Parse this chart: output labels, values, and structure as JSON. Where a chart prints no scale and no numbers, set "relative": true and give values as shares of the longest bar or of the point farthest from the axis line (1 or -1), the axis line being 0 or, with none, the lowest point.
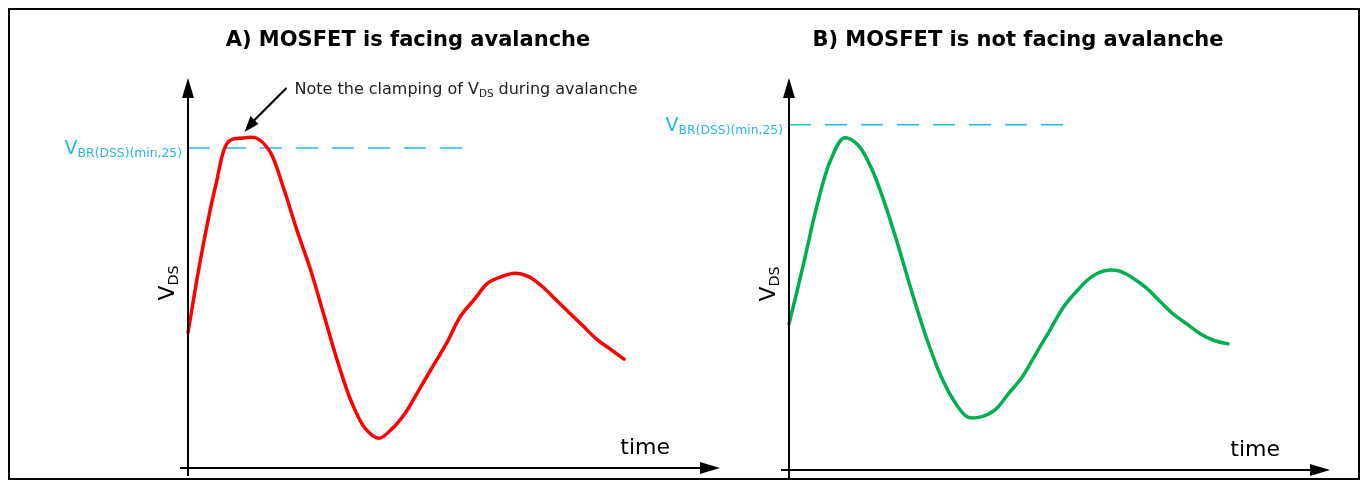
{
  "chart_data": [
    {
      "type": "line",
      "title": "A) MOSFET is facing avalanche",
      "xlabel": "time",
      "ylabel": "V$_{DS}$",
      "relative": true,
      "marker": "none",
      "line_style": "solid",
      "categories": [
        null,
        null,
        null,
        null,
        null,
        null,
        null,
        null,
        null,
        null,
        null,
        null,
        null,
        null,
        null,
        null,
        null,
        null,
        null,
        null,
        null,
        null,
        null,
        null,
        null,
        null,
        null,
        null,
        null,
        null,
        null,
        null,
        null
      ],
      "series": [
        {
          "color": "#ff0000",
          "values": [
            0.41,
            0.65,
            0.85,
            0.99,
            1,
            1,
            0.96,
            0.85,
            0.72,
            0.6,
            0.46,
            0.32,
            0.2,
            0.12,
            0.09,
            0.12,
            0.17,
            0.24,
            0.31,
            0.38,
            0.46,
            0.51,
            0.56,
            0.58,
            0.59,
            0.58,
            0.55,
            0.51,
            0.47,
            0.43,
            0.39,
            0.36,
            0.33
          ]
        }
      ],
      "ref_lines": [
        {
          "axis": "y",
          "value": 0.97,
          "label": "V$_{BR(DSS)(min,25)}$",
          "color": "#29b6e8",
          "line_style": "dashed"
        }
      ],
      "annotations": [
        "Note the clamping of V$_{DS}$ during avalanche"
      ]
    },
    {
      "type": "line",
      "title": "B) MOSFET is not facing avalanche",
      "xlabel": "time",
      "ylabel": "V$_{DS}$",
      "relative": true,
      "marker": "none",
      "line_style": "solid",
      "categories": [
        null,
        null,
        null,
        null,
        null,
        null,
        null,
        null,
        null,
        null,
        null,
        null,
        null,
        null,
        null,
        null,
        null,
        null,
        null,
        null,
        null,
        null,
        null,
        null,
        null,
        null,
        null,
        null,
        null,
        null,
        null,
        null,
        null
      ],
      "series": [
        {
          "color": "#00b050",
          "values": [
            0.44,
            0.61,
            0.79,
            0.93,
            1,
            0.98,
            0.91,
            0.8,
            0.67,
            0.53,
            0.4,
            0.29,
            0.21,
            0.16,
            0.16,
            0.18,
            0.23,
            0.28,
            0.35,
            0.42,
            0.49,
            0.54,
            0.58,
            0.6,
            0.6,
            0.58,
            0.55,
            0.51,
            0.47,
            0.44,
            0.41,
            0.39,
            0.38
          ]
        }
      ],
      "ref_lines": [
        {
          "axis": "y",
          "value": 1.04,
          "label": "V$_{BR(DSS)(min,25)}$",
          "color": "#29b6e8",
          "line_style": "dashed"
        }
      ]
    }
  ]
}
